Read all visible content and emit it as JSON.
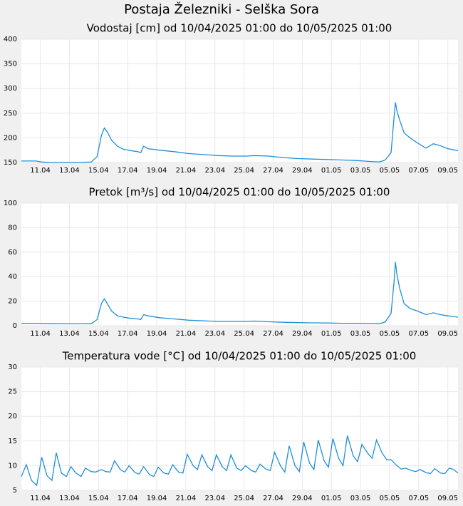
{
  "title": "Postaja Železniki - Selška Sora",
  "chart_data": [
    {
      "type": "line",
      "title": "Vodostaj [cm] od 10/04/2025 01:00 do 10/05/2025 01:00",
      "color": "#1f8fd6",
      "grid": true,
      "xlim": [
        0,
        30
      ],
      "ylim": [
        150,
        400
      ],
      "yticks": [
        150,
        200,
        250,
        300,
        350,
        400
      ],
      "xticks": [
        {
          "value": 1.3,
          "label": "11.04"
        },
        {
          "value": 3.3,
          "label": "13.04"
        },
        {
          "value": 5.3,
          "label": "15.04"
        },
        {
          "value": 7.3,
          "label": "17.04"
        },
        {
          "value": 9.3,
          "label": "19.04"
        },
        {
          "value": 11.3,
          "label": "21.04"
        },
        {
          "value": 13.3,
          "label": "23.04"
        },
        {
          "value": 15.3,
          "label": "25.04"
        },
        {
          "value": 17.3,
          "label": "27.04"
        },
        {
          "value": 19.3,
          "label": "29.04"
        },
        {
          "value": 21.3,
          "label": "01.05"
        },
        {
          "value": 23.3,
          "label": "03.05"
        },
        {
          "value": 25.3,
          "label": "05.05"
        },
        {
          "value": 27.3,
          "label": "07.05"
        },
        {
          "value": 29.3,
          "label": "09.05"
        }
      ],
      "x": [
        0,
        1,
        1.4,
        2,
        3,
        4,
        4.8,
        5.2,
        5.5,
        5.7,
        5.9,
        6.2,
        6.6,
        7,
        7.5,
        8,
        8.2,
        8.4,
        8.7,
        9.5,
        10.5,
        11.5,
        12.5,
        13.5,
        14.5,
        15.5,
        16,
        17,
        18,
        19,
        20,
        21,
        22,
        23,
        24,
        24.6,
        25,
        25.4,
        25.6,
        25.7,
        25.8,
        26,
        26.3,
        26.7,
        27.2,
        27.8,
        28.3,
        28.8,
        29.3,
        30
      ],
      "values": [
        153,
        153,
        151,
        150,
        150,
        150,
        151,
        162,
        205,
        220,
        212,
        195,
        183,
        177,
        174,
        172,
        170,
        183,
        178,
        175,
        172,
        168,
        166,
        164,
        163,
        163,
        164,
        163,
        160,
        158,
        157,
        156,
        155,
        154,
        152,
        151,
        155,
        170,
        240,
        272,
        255,
        235,
        210,
        200,
        190,
        179,
        188,
        184,
        178,
        174
      ]
    },
    {
      "type": "line",
      "title": "Pretok [m³/s] od 10/04/2025 01:00 do 10/05/2025 01:00",
      "color": "#1f8fd6",
      "grid": true,
      "xlim": [
        0,
        30
      ],
      "ylim": [
        0,
        100
      ],
      "yticks": [
        0,
        20,
        40,
        60,
        80,
        100
      ],
      "xticks": [
        {
          "value": 1.3,
          "label": "11.04"
        },
        {
          "value": 3.3,
          "label": "13.04"
        },
        {
          "value": 5.3,
          "label": "15.04"
        },
        {
          "value": 7.3,
          "label": "17.04"
        },
        {
          "value": 9.3,
          "label": "19.04"
        },
        {
          "value": 11.3,
          "label": "21.04"
        },
        {
          "value": 13.3,
          "label": "23.04"
        },
        {
          "value": 15.3,
          "label": "25.04"
        },
        {
          "value": 17.3,
          "label": "27.04"
        },
        {
          "value": 19.3,
          "label": "29.04"
        },
        {
          "value": 21.3,
          "label": "01.05"
        },
        {
          "value": 23.3,
          "label": "03.05"
        },
        {
          "value": 25.3,
          "label": "05.05"
        },
        {
          "value": 27.3,
          "label": "07.05"
        },
        {
          "value": 29.3,
          "label": "09.05"
        }
      ],
      "x": [
        0,
        1,
        1.4,
        2,
        3,
        4,
        4.8,
        5.2,
        5.5,
        5.7,
        5.9,
        6.2,
        6.6,
        7,
        7.5,
        8,
        8.2,
        8.4,
        8.7,
        9.5,
        10.5,
        11.5,
        12.5,
        13.5,
        14.5,
        15.5,
        16,
        17,
        18,
        19,
        20,
        21,
        22,
        23,
        24,
        24.6,
        25,
        25.4,
        25.6,
        25.7,
        25.8,
        26,
        26.3,
        26.7,
        27.2,
        27.8,
        28.3,
        28.8,
        29.3,
        30
      ],
      "values": [
        2,
        2,
        1.8,
        1.6,
        1.5,
        1.5,
        1.6,
        5,
        18,
        22,
        18,
        12,
        8,
        7,
        6,
        5.5,
        5,
        9,
        8,
        6.5,
        5.5,
        4.5,
        4,
        3.5,
        3.5,
        3.5,
        3.8,
        3.2,
        2.8,
        2.5,
        2.3,
        2.2,
        2,
        2,
        1.8,
        1.6,
        3,
        10,
        35,
        52,
        42,
        30,
        18,
        14,
        12,
        9,
        10.5,
        9,
        8,
        7
      ]
    },
    {
      "type": "line",
      "title": "Temperatura vode [°C] od 10/04/2025 01:00 do 10/05/2025 01:00",
      "color": "#1f8fd6",
      "grid": true,
      "xlim": [
        0,
        30
      ],
      "ylim": [
        5,
        30
      ],
      "yticks": [
        5,
        10,
        15,
        20,
        25,
        30
      ],
      "xticks": [
        {
          "value": 1.3,
          "label": "11.04"
        },
        {
          "value": 3.3,
          "label": "13.04"
        },
        {
          "value": 5.3,
          "label": "15.04"
        },
        {
          "value": 7.3,
          "label": "17.04"
        },
        {
          "value": 9.3,
          "label": "19.04"
        },
        {
          "value": 11.3,
          "label": "21.04"
        },
        {
          "value": 13.3,
          "label": "23.04"
        },
        {
          "value": 15.3,
          "label": "25.04"
        },
        {
          "value": 17.3,
          "label": "27.04"
        },
        {
          "value": 19.3,
          "label": "29.04"
        },
        {
          "value": 21.3,
          "label": "01.05"
        },
        {
          "value": 23.3,
          "label": "03.05"
        },
        {
          "value": 25.3,
          "label": "05.05"
        },
        {
          "value": 27.3,
          "label": "07.05"
        },
        {
          "value": 29.3,
          "label": "09.05"
        }
      ],
      "x": [
        0,
        0.34,
        0.7,
        1.05,
        1.4,
        1.75,
        2.1,
        2.4,
        2.75,
        3.1,
        3.4,
        3.75,
        4.1,
        4.4,
        4.8,
        5.1,
        5.5,
        5.8,
        6.1,
        6.4,
        6.8,
        7.1,
        7.4,
        7.8,
        8.1,
        8.4,
        8.8,
        9.1,
        9.4,
        9.8,
        10.1,
        10.4,
        10.8,
        11.1,
        11.4,
        11.8,
        12.1,
        12.4,
        12.8,
        13.1,
        13.4,
        13.8,
        14.1,
        14.4,
        14.8,
        15.1,
        15.4,
        15.8,
        16.1,
        16.4,
        16.8,
        17.1,
        17.4,
        17.8,
        18.1,
        18.4,
        18.8,
        19.1,
        19.4,
        19.8,
        20.1,
        20.4,
        20.8,
        21.1,
        21.4,
        21.8,
        22.1,
        22.4,
        22.8,
        23.1,
        23.4,
        23.8,
        24.1,
        24.4,
        24.8,
        25.1,
        25.4,
        25.8,
        26.1,
        26.4,
        26.8,
        27.1,
        27.4,
        27.8,
        28.1,
        28.4,
        28.8,
        29.1,
        29.4,
        29.7,
        30
      ],
      "values": [
        7.8,
        10.2,
        7.0,
        6.0,
        11.7,
        8.0,
        7.0,
        12.6,
        8.5,
        7.8,
        9.8,
        8.5,
        7.8,
        9.5,
        8.8,
        8.7,
        9.2,
        8.8,
        8.7,
        11.0,
        9.2,
        8.7,
        10.0,
        8.6,
        8.3,
        9.8,
        8.2,
        7.8,
        9.7,
        8.5,
        8.3,
        10.2,
        8.7,
        8.5,
        12.3,
        10.0,
        9.2,
        12.2,
        9.8,
        9.0,
        12.2,
        9.8,
        9.0,
        12.2,
        9.5,
        9.0,
        10.0,
        9.0,
        8.7,
        10.3,
        9.3,
        9.0,
        12.7,
        10.0,
        8.7,
        14.0,
        10.0,
        8.8,
        14.8,
        10.5,
        9.2,
        15.2,
        11.0,
        9.7,
        15.5,
        11.5,
        10.0,
        16.1,
        12.0,
        10.8,
        14.3,
        12.5,
        11.5,
        15.2,
        12.5,
        11.2,
        11.2,
        10.0,
        9.3,
        9.5,
        9.0,
        8.8,
        9.2,
        8.6,
        8.4,
        9.4,
        8.5,
        8.4,
        9.5,
        9.2,
        8.5
      ]
    }
  ]
}
